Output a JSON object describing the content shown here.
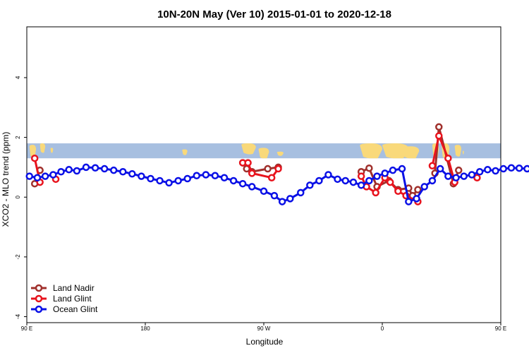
{
  "chart_data": {
    "type": "line",
    "title": "10N-20N May (Ver 10)   2015-01-01 to 2020-12-18",
    "xlabel": "Longitude",
    "ylabel": "XCO2 - MLO trend (ppm)",
    "xlim": [
      90,
      450
    ],
    "ylim": [
      -4.2,
      5.7
    ],
    "x_ticks": [
      {
        "value": 90,
        "label": "90 E"
      },
      {
        "value": 180,
        "label": "180"
      },
      {
        "value": 270,
        "label": "90 W"
      },
      {
        "value": 360,
        "label": "0"
      },
      {
        "value": 450,
        "label": "90 E"
      },
      {
        "value": 540,
        "label": "180"
      }
    ],
    "y_ticks": [
      {
        "value": -4,
        "label": "-4"
      },
      {
        "value": -2,
        "label": "-2"
      },
      {
        "value": 0,
        "label": "0"
      },
      {
        "value": 2,
        "label": "2"
      },
      {
        "value": 4,
        "label": "4"
      }
    ],
    "legend_position": "bottom-left",
    "map_strip": {
      "ymin": 1.3,
      "ymax": 1.8,
      "ocean_color": "#a7bfe0",
      "land_color": "#f9d97a"
    },
    "series": [
      {
        "name": "Land Nadir",
        "color": "#a0302c",
        "segments": [
          [
            [
              96,
              0.45
            ],
            [
              100,
              0.9
            ]
          ],
          [
            [
              254,
              1.15
            ],
            [
              257,
              0.95
            ],
            [
              261,
              0.85
            ],
            [
              273,
              0.95
            ],
            [
              281,
              1.0
            ]
          ],
          [
            [
              344,
              0.85
            ],
            [
              350,
              0.97
            ],
            [
              356,
              0.35
            ],
            [
              365,
              0.55
            ],
            [
              372,
              0.25
            ],
            [
              380,
              0.3
            ],
            [
              383,
              0.05
            ],
            [
              387,
              0.25
            ]
          ],
          [
            [
              400,
              0.8
            ],
            [
              403,
              2.35
            ],
            [
              414,
              0.45
            ],
            [
              418,
              0.9
            ]
          ]
        ]
      },
      {
        "name": "Land Glint",
        "color": "#e8131d",
        "segments": [
          [
            [
              96,
              1.3
            ],
            [
              100,
              0.5
            ]
          ],
          [
            [
              112,
              0.6
            ]
          ],
          [
            [
              254,
              1.15
            ],
            [
              258,
              1.15
            ],
            [
              261,
              0.8
            ],
            [
              276,
              0.65
            ],
            [
              281,
              0.95
            ]
          ],
          [
            [
              344,
              0.7
            ],
            [
              348,
              0.35
            ],
            [
              355,
              0.15
            ],
            [
              362,
              0.65
            ],
            [
              366,
              0.5
            ],
            [
              372,
              0.2
            ],
            [
              378,
              0.05
            ],
            [
              387,
              -0.15
            ]
          ],
          [
            [
              398,
              1.05
            ],
            [
              403,
              2.05
            ],
            [
              410,
              1.3
            ],
            [
              415,
              0.5
            ]
          ],
          [
            [
              432,
              0.65
            ]
          ]
        ]
      },
      {
        "name": "Ocean Glint",
        "color": "#0a10e6",
        "segments": [
          [
            [
              92,
              0.7
            ],
            [
              98,
              0.65
            ],
            [
              104,
              0.7
            ],
            [
              110,
              0.75
            ],
            [
              116,
              0.85
            ],
            [
              122,
              0.92
            ],
            [
              128,
              0.88
            ],
            [
              135,
              1.0
            ],
            [
              142,
              0.98
            ],
            [
              149,
              0.95
            ],
            [
              156,
              0.9
            ],
            [
              163,
              0.85
            ],
            [
              170,
              0.78
            ],
            [
              177,
              0.7
            ],
            [
              184,
              0.62
            ],
            [
              191,
              0.55
            ],
            [
              198,
              0.48
            ],
            [
              205,
              0.55
            ],
            [
              212,
              0.62
            ],
            [
              219,
              0.72
            ],
            [
              226,
              0.75
            ],
            [
              233,
              0.72
            ],
            [
              240,
              0.65
            ],
            [
              247,
              0.55
            ],
            [
              254,
              0.45
            ],
            [
              261,
              0.35
            ],
            [
              270,
              0.2
            ],
            [
              278,
              0.05
            ],
            [
              284,
              -0.15
            ],
            [
              290,
              -0.05
            ],
            [
              298,
              0.15
            ],
            [
              305,
              0.4
            ],
            [
              312,
              0.55
            ],
            [
              319,
              0.75
            ],
            [
              326,
              0.6
            ],
            [
              332,
              0.55
            ],
            [
              338,
              0.5
            ],
            [
              344,
              0.4
            ],
            [
              350,
              0.55
            ],
            [
              356,
              0.7
            ],
            [
              362,
              0.8
            ],
            [
              368,
              0.9
            ],
            [
              375,
              0.95
            ],
            [
              380,
              -0.15
            ],
            [
              386,
              -0.05
            ],
            [
              392,
              0.35
            ],
            [
              398,
              0.55
            ],
            [
              404,
              0.95
            ],
            [
              410,
              0.7
            ],
            [
              416,
              0.65
            ],
            [
              422,
              0.7
            ],
            [
              428,
              0.75
            ],
            [
              434,
              0.85
            ],
            [
              440,
              0.92
            ],
            [
              446,
              0.88
            ],
            [
              452,
              0.95
            ],
            [
              458,
              0.98
            ],
            [
              464,
              0.97
            ],
            [
              470,
              0.95
            ]
          ]
        ]
      }
    ]
  }
}
